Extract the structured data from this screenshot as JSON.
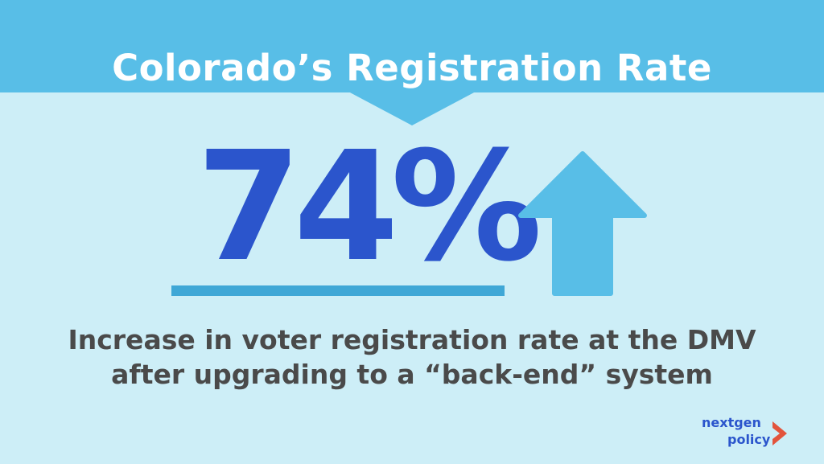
{
  "title": "Colorado’s Registration Rate",
  "stat": {
    "value": "74%"
  },
  "caption": {
    "line1": "Increase in voter registration rate at the DMV",
    "line2": "after upgrading to a “back-end” system"
  },
  "logo": {
    "line1": "nextgen",
    "line2": "policy",
    "mark_icon": "chevron-right-icon"
  },
  "colors": {
    "background": "#CDEEF7",
    "header": "#58BEE7",
    "title": "#FFFFFF",
    "stat": "#2B55CC",
    "underline": "#3FA7D6",
    "arrow": "#58BEE7",
    "caption": "#4A4A4A",
    "logo_text": "#2B55CC",
    "logo_mark": "#E2543C"
  }
}
